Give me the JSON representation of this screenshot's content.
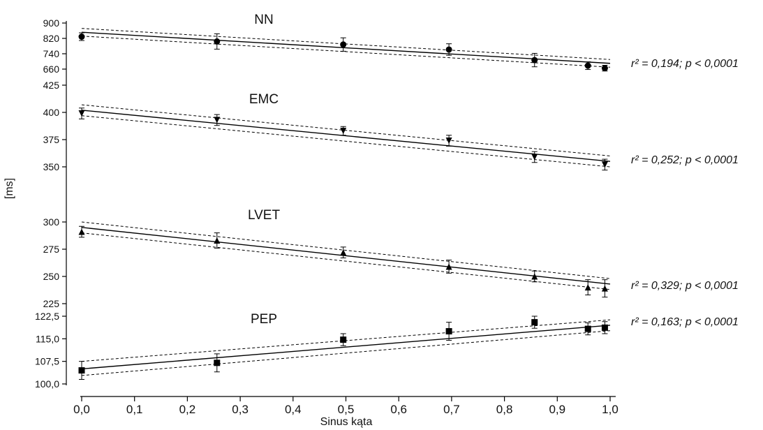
{
  "chart_data": {
    "type": "scatter",
    "xlabel": "Sinus kąta",
    "ylabel": "[ms]",
    "xlim": [
      0.0,
      1.0
    ],
    "x_ticks": [
      "0,0",
      "0,1",
      "0,2",
      "0,3",
      "0,4",
      "0,5",
      "0,6",
      "0,7",
      "0,8",
      "0,9",
      "1,0"
    ],
    "grid": false,
    "panels": [
      {
        "name": "NN",
        "marker": "circle",
        "ylim": [
          660,
          900
        ],
        "y_ticks": [
          "660",
          "740",
          "820",
          "900"
        ],
        "stats": "r² = 0,194; p < 0,0001",
        "points": [
          {
            "x": 0.0,
            "y": 829,
            "err": 20
          },
          {
            "x": 0.256,
            "y": 804,
            "err": 40
          },
          {
            "x": 0.495,
            "y": 788,
            "err": 35
          },
          {
            "x": 0.695,
            "y": 762,
            "err": 30
          },
          {
            "x": 0.857,
            "y": 707,
            "err": 35
          },
          {
            "x": 0.958,
            "y": 678,
            "err": 20
          },
          {
            "x": 0.99,
            "y": 665,
            "err": 15
          }
        ],
        "fit": [
          852,
          690
        ],
        "ci_upper": [
          872,
          710
        ],
        "ci_lower": [
          832,
          670
        ]
      },
      {
        "name": "EMC",
        "marker": "triangle-down",
        "ylim": [
          350,
          425
        ],
        "y_ticks": [
          "350",
          "375",
          "400",
          "425"
        ],
        "stats": "r² = 0,252; p < 0,0001",
        "points": [
          {
            "x": 0.0,
            "y": 399,
            "err": 5
          },
          {
            "x": 0.256,
            "y": 393,
            "err": 5
          },
          {
            "x": 0.495,
            "y": 383,
            "err": 4
          },
          {
            "x": 0.695,
            "y": 374,
            "err": 5
          },
          {
            "x": 0.857,
            "y": 359,
            "err": 5
          },
          {
            "x": 0.99,
            "y": 352,
            "err": 5
          }
        ],
        "fit": [
          402,
          355
        ],
        "ci_upper": [
          407,
          360
        ],
        "ci_lower": [
          397,
          350
        ]
      },
      {
        "name": "LVET",
        "marker": "triangle-up",
        "ylim": [
          225,
          300
        ],
        "y_ticks": [
          "225",
          "250",
          "275",
          "300"
        ],
        "stats": "r² = 0,329; p < 0,0001",
        "points": [
          {
            "x": 0.0,
            "y": 291,
            "err": 5
          },
          {
            "x": 0.256,
            "y": 283,
            "err": 7
          },
          {
            "x": 0.495,
            "y": 272,
            "err": 5
          },
          {
            "x": 0.695,
            "y": 259,
            "err": 6
          },
          {
            "x": 0.857,
            "y": 250,
            "err": 5
          },
          {
            "x": 0.958,
            "y": 240,
            "err": 7
          },
          {
            "x": 0.99,
            "y": 239,
            "err": 8
          }
        ],
        "fit": [
          295,
          243
        ],
        "ci_upper": [
          300,
          248
        ],
        "ci_lower": [
          290,
          238
        ]
      },
      {
        "name": "PEP",
        "marker": "square",
        "ylim": [
          100.0,
          122.5
        ],
        "y_ticks": [
          "100,0",
          "107,5",
          "115,0",
          "122,5"
        ],
        "stats": "r² = 0,163; p < 0,0001",
        "points": [
          {
            "x": 0.0,
            "y": 104.5,
            "err": 3
          },
          {
            "x": 0.256,
            "y": 107.0,
            "err": 3
          },
          {
            "x": 0.495,
            "y": 114.7,
            "err": 2
          },
          {
            "x": 0.695,
            "y": 117.5,
            "err": 3
          },
          {
            "x": 0.857,
            "y": 120.5,
            "err": 2
          },
          {
            "x": 0.958,
            "y": 118.3,
            "err": 2
          },
          {
            "x": 0.99,
            "y": 118.7,
            "err": 2
          }
        ],
        "fit": [
          105.0,
          119.5
        ],
        "ci_upper": [
          107.5,
          121.3
        ],
        "ci_lower": [
          102.8,
          117.7
        ]
      }
    ]
  }
}
